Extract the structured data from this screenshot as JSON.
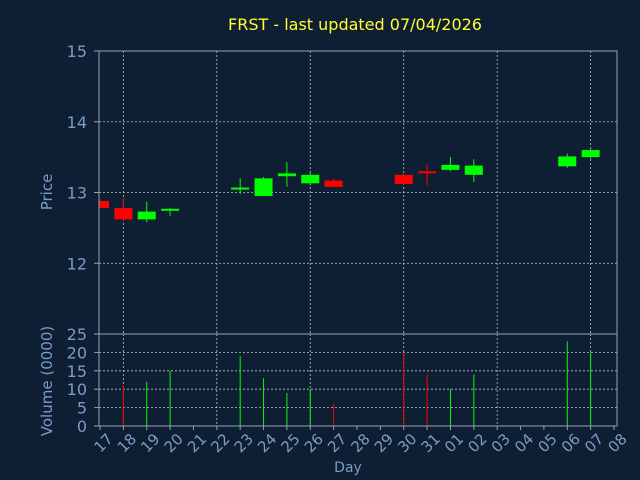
{
  "colors": {
    "background": "#0f1f33",
    "axis": "#8fa3b8",
    "grid": "#b8c4d0",
    "title": "#ffff33",
    "label": "#7a9cc6",
    "up": "#00ff00",
    "down": "#ff0000"
  },
  "chart_data": {
    "type": "candlestick",
    "title": "FRST - last updated 07/04/2026",
    "xlabel": "Day",
    "price_panel": {
      "ylabel": "Price",
      "ylim": [
        11,
        15
      ],
      "yticks": [
        12,
        13,
        14,
        15
      ]
    },
    "volume_panel": {
      "ylabel": "Volume (0000)",
      "ylim": [
        0,
        25
      ],
      "yticks": [
        0,
        5,
        10,
        15,
        20,
        25
      ]
    },
    "x_labels": [
      "17",
      "18",
      "19",
      "20",
      "21",
      "22",
      "23",
      "24",
      "25",
      "26",
      "27",
      "28",
      "29",
      "30",
      "31",
      "01",
      "02",
      "03",
      "04",
      "05",
      "06",
      "07",
      "08"
    ],
    "grid": true,
    "candles": [
      {
        "day": "17",
        "open": 12.88,
        "close": 12.78,
        "high": 12.9,
        "low": 12.78,
        "volume": 0,
        "dir": "down"
      },
      {
        "day": "18",
        "open": 12.78,
        "close": 12.62,
        "high": 12.92,
        "low": 12.6,
        "volume": 11,
        "dir": "down"
      },
      {
        "day": "19",
        "open": 12.62,
        "close": 12.73,
        "high": 12.87,
        "low": 12.58,
        "volume": 12,
        "dir": "up"
      },
      {
        "day": "20",
        "open": 12.75,
        "close": 12.77,
        "high": 12.78,
        "low": 12.67,
        "volume": 15,
        "dir": "up"
      },
      {
        "day": "23",
        "open": 13.05,
        "close": 13.07,
        "high": 13.2,
        "low": 12.98,
        "volume": 19,
        "dir": "up"
      },
      {
        "day": "24",
        "open": 12.95,
        "close": 13.2,
        "high": 13.22,
        "low": 12.95,
        "volume": 13,
        "dir": "up"
      },
      {
        "day": "25",
        "open": 13.23,
        "close": 13.27,
        "high": 13.43,
        "low": 13.08,
        "volume": 9,
        "dir": "up"
      },
      {
        "day": "26",
        "open": 13.13,
        "close": 13.25,
        "high": 13.28,
        "low": 13.1,
        "volume": 10,
        "dir": "up"
      },
      {
        "day": "27",
        "open": 13.17,
        "close": 13.08,
        "high": 13.2,
        "low": 13.07,
        "volume": 6,
        "dir": "down"
      },
      {
        "day": "30",
        "open": 13.25,
        "close": 13.12,
        "high": 13.26,
        "low": 13.1,
        "volume": 20,
        "dir": "down"
      },
      {
        "day": "31",
        "open": 13.3,
        "close": 13.28,
        "high": 13.4,
        "low": 13.1,
        "volume": 14,
        "dir": "down"
      },
      {
        "day": "01",
        "open": 13.32,
        "close": 13.39,
        "high": 13.5,
        "low": 13.3,
        "volume": 10,
        "dir": "up"
      },
      {
        "day": "02",
        "open": 13.25,
        "close": 13.38,
        "high": 13.47,
        "low": 13.15,
        "volume": 14,
        "dir": "up"
      },
      {
        "day": "06",
        "open": 13.37,
        "close": 13.51,
        "high": 13.55,
        "low": 13.35,
        "volume": 23,
        "dir": "up"
      },
      {
        "day": "07",
        "open": 13.5,
        "close": 13.6,
        "high": 13.63,
        "low": 13.48,
        "volume": 20,
        "dir": "up"
      }
    ]
  }
}
